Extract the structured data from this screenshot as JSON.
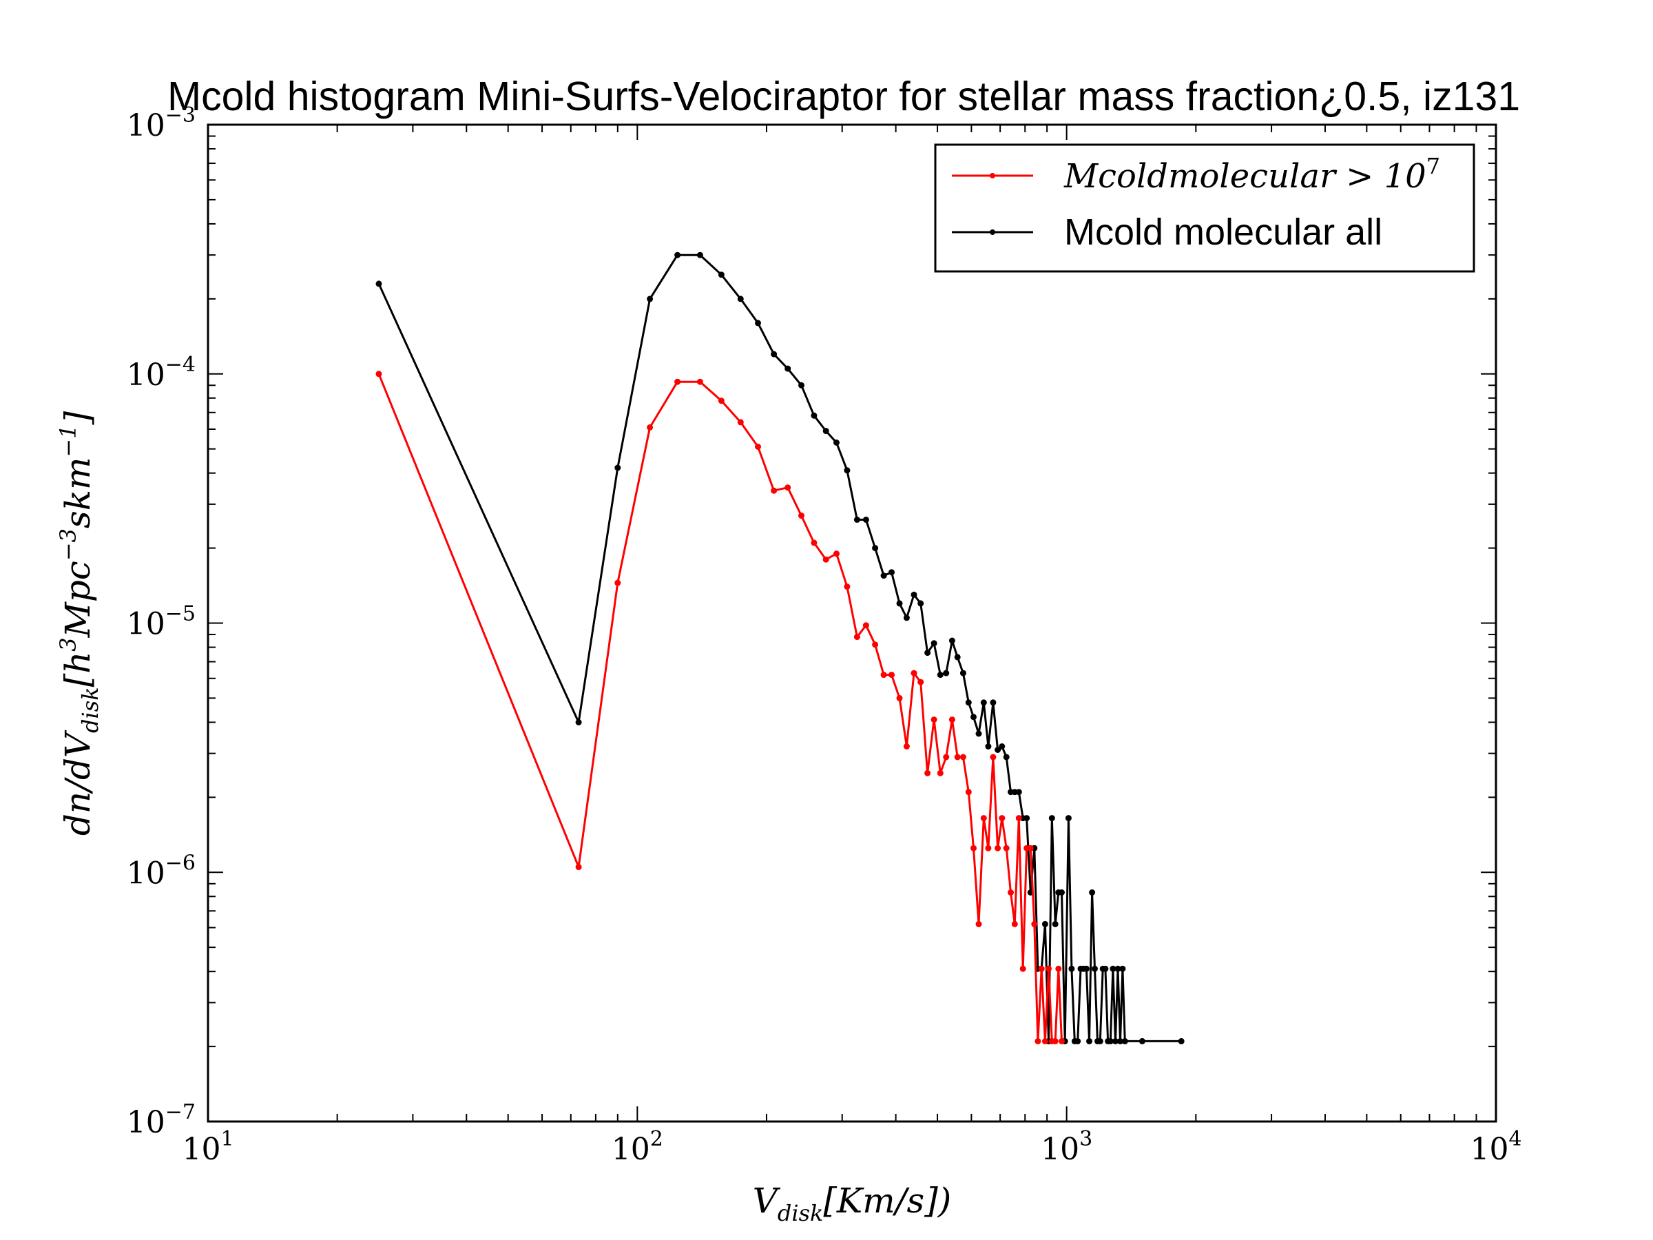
{
  "chart_data": {
    "type": "line",
    "title": "Mcold histogram Mini-Surfs-Velociraptor for stellar mass fraction¿0.5, iz131",
    "xlabel": "Vdisk[Km/s])",
    "ylabel": "dn/dVdisk[h3Mpc−3skm−1]",
    "x_scale": "log",
    "y_scale": "log",
    "xlim": [
      10,
      10000
    ],
    "ylim": [
      1e-07,
      0.001
    ],
    "x_ticks": [
      {
        "value": 10,
        "base": "10",
        "exp": "1"
      },
      {
        "value": 100,
        "base": "10",
        "exp": "2"
      },
      {
        "value": 1000,
        "base": "10",
        "exp": "3"
      },
      {
        "value": 10000,
        "base": "10",
        "exp": "4"
      }
    ],
    "y_ticks": [
      {
        "value": 1e-07,
        "base": "10",
        "exp": "−7"
      },
      {
        "value": 1e-06,
        "base": "10",
        "exp": "−6"
      },
      {
        "value": 1e-05,
        "base": "10",
        "exp": "−5"
      },
      {
        "value": 0.0001,
        "base": "10",
        "exp": "−4"
      },
      {
        "value": 0.001,
        "base": "10",
        "exp": "−3"
      }
    ],
    "grid": false,
    "legend_position": "top-right",
    "series": [
      {
        "name": "Mcoldmolecular > 10^7",
        "legend_main": "Mcoldmolecular > 10",
        "legend_exp": "7",
        "color": "#ff0000",
        "points": [
          [
            25,
            0.0001
          ],
          [
            73,
            1.05e-06
          ],
          [
            90,
            1.45e-05
          ],
          [
            107,
            6.1e-05
          ],
          [
            124,
            9.3e-05
          ],
          [
            140,
            9.3e-05
          ],
          [
            157,
            7.8e-05
          ],
          [
            174,
            6.4e-05
          ],
          [
            191,
            5.1e-05
          ],
          [
            208,
            3.4e-05
          ],
          [
            224,
            3.5e-05
          ],
          [
            241,
            2.7e-05
          ],
          [
            258,
            2.1e-05
          ],
          [
            275,
            1.8e-05
          ],
          [
            291,
            1.9e-05
          ],
          [
            308,
            1.4e-05
          ],
          [
            325,
            8.8e-06
          ],
          [
            341,
            9.8e-06
          ],
          [
            358,
            8.2e-06
          ],
          [
            375,
            6.2e-06
          ],
          [
            391,
            6.2e-06
          ],
          [
            408,
            5e-06
          ],
          [
            424,
            3.2e-06
          ],
          [
            441,
            6.3e-06
          ],
          [
            457,
            5.8e-06
          ],
          [
            474,
            2.5e-06
          ],
          [
            491,
            4.1e-06
          ],
          [
            508,
            2.5e-06
          ],
          [
            524,
            2.9e-06
          ],
          [
            541,
            4.1e-06
          ],
          [
            557,
            2.9e-06
          ],
          [
            574,
            2.9e-06
          ],
          [
            591,
            2.1e-06
          ],
          [
            607,
            1.25e-06
          ],
          [
            624,
            6.2e-07
          ],
          [
            641,
            1.65e-06
          ],
          [
            657,
            1.25e-06
          ],
          [
            674,
            2.9e-06
          ],
          [
            691,
            1.25e-06
          ],
          [
            707,
            1.65e-06
          ],
          [
            724,
            1.25e-06
          ],
          [
            741,
            8.3e-07
          ],
          [
            757,
            6.2e-07
          ],
          [
            774,
            1.65e-06
          ],
          [
            791,
            4.1e-07
          ],
          [
            807,
            1.25e-06
          ],
          [
            824,
            1.25e-06
          ],
          [
            841,
            6.2e-07
          ],
          [
            857,
            2.1e-07
          ],
          [
            874,
            4.1e-07
          ],
          [
            891,
            2.1e-07
          ],
          [
            908,
            4.1e-07
          ],
          [
            924,
            2.1e-07
          ],
          [
            941,
            2.1e-07
          ],
          [
            957,
            4.1e-07
          ],
          [
            974,
            2.1e-07
          ]
        ]
      },
      {
        "name": "Mcold molecular all",
        "legend_main": "Mcold molecular all",
        "color": "#000000",
        "points": [
          [
            25,
            0.00023
          ],
          [
            73,
            4e-06
          ],
          [
            90,
            4.2e-05
          ],
          [
            107,
            0.0002
          ],
          [
            124,
            0.0003
          ],
          [
            140,
            0.0003
          ],
          [
            157,
            0.00025
          ],
          [
            174,
            0.0002
          ],
          [
            191,
            0.00016
          ],
          [
            208,
            0.00012
          ],
          [
            224,
            0.000105
          ],
          [
            241,
            9e-05
          ],
          [
            258,
            6.8e-05
          ],
          [
            275,
            5.9e-05
          ],
          [
            291,
            5.3e-05
          ],
          [
            308,
            4.1e-05
          ],
          [
            325,
            2.6e-05
          ],
          [
            341,
            2.6e-05
          ],
          [
            358,
            2e-05
          ],
          [
            375,
            1.55e-05
          ],
          [
            391,
            1.6e-05
          ],
          [
            408,
            1.2e-05
          ],
          [
            424,
            1.05e-05
          ],
          [
            441,
            1.3e-05
          ],
          [
            457,
            1.2e-05
          ],
          [
            474,
            7.6e-06
          ],
          [
            491,
            8.3e-06
          ],
          [
            508,
            6.2e-06
          ],
          [
            524,
            6.3e-06
          ],
          [
            541,
            8.5e-06
          ],
          [
            557,
            7.3e-06
          ],
          [
            574,
            6.3e-06
          ],
          [
            591,
            4.8e-06
          ],
          [
            607,
            4.2e-06
          ],
          [
            624,
            3.6e-06
          ],
          [
            641,
            4.8e-06
          ],
          [
            657,
            3.2e-06
          ],
          [
            674,
            4.8e-06
          ],
          [
            691,
            3.1e-06
          ],
          [
            707,
            3.2e-06
          ],
          [
            724,
            2.9e-06
          ],
          [
            741,
            2.1e-06
          ],
          [
            757,
            2.1e-06
          ],
          [
            774,
            2.1e-06
          ],
          [
            791,
            1.65e-06
          ],
          [
            807,
            1.65e-06
          ],
          [
            824,
            8.3e-07
          ],
          [
            841,
            1.25e-06
          ],
          [
            857,
            4.1e-07
          ],
          [
            874,
            4.1e-07
          ],
          [
            891,
            6.2e-07
          ],
          [
            908,
            2.1e-07
          ],
          [
            924,
            1.65e-06
          ],
          [
            941,
            6.2e-07
          ],
          [
            957,
            8.3e-07
          ],
          [
            974,
            8.3e-07
          ],
          [
            991,
            2.1e-07
          ],
          [
            1010,
            1.65e-06
          ],
          [
            1027,
            4.1e-07
          ],
          [
            1044,
            2.1e-07
          ],
          [
            1061,
            2.1e-07
          ],
          [
            1078,
            4.1e-07
          ],
          [
            1095,
            4.1e-07
          ],
          [
            1112,
            4.1e-07
          ],
          [
            1129,
            2.1e-07
          ],
          [
            1146,
            8.3e-07
          ],
          [
            1163,
            4.1e-07
          ],
          [
            1180,
            2.1e-07
          ],
          [
            1197,
            2.1e-07
          ],
          [
            1214,
            4.1e-07
          ],
          [
            1231,
            4.1e-07
          ],
          [
            1248,
            2.1e-07
          ],
          [
            1265,
            2.1e-07
          ],
          [
            1282,
            4.1e-07
          ],
          [
            1299,
            2.1e-07
          ],
          [
            1316,
            4.1e-07
          ],
          [
            1333,
            2.1e-07
          ],
          [
            1350,
            4.1e-07
          ],
          [
            1367,
            2.1e-07
          ],
          [
            1500,
            2.1e-07
          ],
          [
            1850,
            2.1e-07
          ]
        ]
      }
    ]
  }
}
